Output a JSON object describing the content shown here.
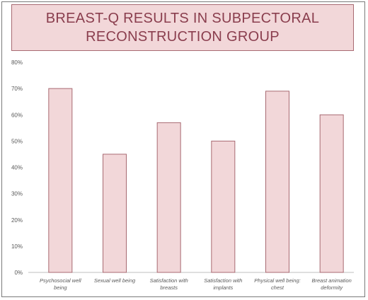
{
  "chart_data": {
    "type": "bar",
    "title_lines": [
      "BREAST-Q RESULTS IN SUBPECTORAL",
      "RECONSTRUCTION GROUP"
    ],
    "categories": [
      [
        "Psychosocial well",
        "being"
      ],
      [
        "Sexual well being"
      ],
      [
        "Satisfaction with",
        "breasts"
      ],
      [
        "Satisfaction with",
        "implants"
      ],
      [
        "Physical well being:",
        "chest"
      ],
      [
        "Breast animation",
        "deformity"
      ]
    ],
    "values": [
      70,
      45,
      57,
      50,
      69,
      60
    ],
    "ylim": [
      0,
      80
    ],
    "yticks": [
      0,
      10,
      20,
      30,
      40,
      50,
      60,
      70,
      80
    ],
    "ytick_format": "%",
    "grid": false,
    "bar_color": "#f2d7d9",
    "bar_edge_color": "#a86a72",
    "title_color": "#8a3e4e"
  }
}
